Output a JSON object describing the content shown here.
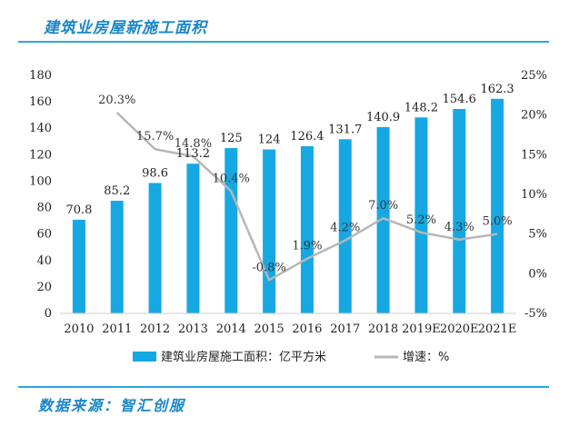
{
  "header": {
    "title": "建筑业房屋新施工面积"
  },
  "footer": {
    "source": "数据来源：智汇创服"
  },
  "colors": {
    "bar": "#16a8e2",
    "line": "#b7b7b7",
    "accent": "#1a86c8"
  },
  "chart_data": {
    "type": "bar",
    "title": "",
    "categories": [
      "2010",
      "2011",
      "2012",
      "2013",
      "2014",
      "2015",
      "2016",
      "2017",
      "2018",
      "2019E",
      "2020E",
      "2021E"
    ],
    "series": [
      {
        "name": "建筑业房屋施工面积：亿平方米",
        "type": "bar",
        "axis": "left",
        "values": [
          70.8,
          85.2,
          98.6,
          113.2,
          125,
          124,
          126.4,
          131.7,
          140.9,
          148.2,
          154.6,
          162.3
        ],
        "labels": [
          "70.8",
          "85.2",
          "98.6",
          "113.2",
          "125",
          "124",
          "126.4",
          "131.7",
          "140.9",
          "148.2",
          "154.6",
          "162.3"
        ]
      },
      {
        "name": "增速：%",
        "type": "line",
        "axis": "right",
        "values": [
          null,
          20.3,
          15.7,
          14.8,
          10.4,
          -0.8,
          1.9,
          4.2,
          7.0,
          5.2,
          4.3,
          5.0
        ],
        "labels": [
          "",
          "20.3%",
          "15.7%",
          "14.8%",
          "10.4%",
          "-0.8%",
          "1.9%",
          "4.2%",
          "7.0%",
          "5.2%",
          "4.3%",
          "5.0%"
        ]
      }
    ],
    "y_left": {
      "min": 0,
      "max": 180,
      "step": 20,
      "ticks": [
        "0",
        "20",
        "40",
        "60",
        "80",
        "100",
        "120",
        "140",
        "160",
        "180"
      ]
    },
    "y_right": {
      "min": -5,
      "max": 25,
      "step": 5,
      "ticks": [
        "-5%",
        "0%",
        "5%",
        "10%",
        "15%",
        "20%",
        "25%"
      ]
    },
    "grid": false,
    "legend_position": "bottom"
  }
}
